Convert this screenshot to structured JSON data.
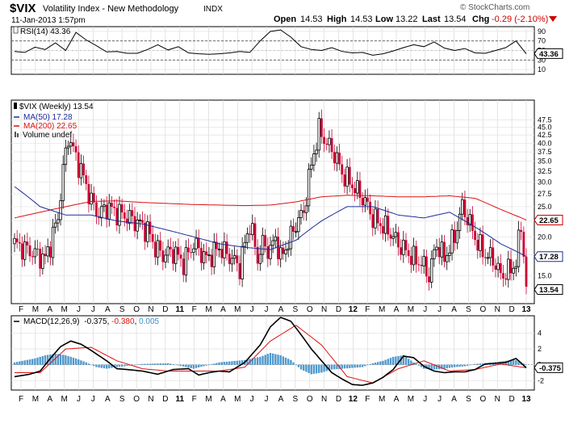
{
  "header": {
    "symbol": "$VIX",
    "name": "Volatility Index - New Methodology",
    "exchange": "INDX",
    "date": "11-Jan-2013 1:57pm",
    "watermark": "© StockCharts.com",
    "open_label": "Open",
    "open": "14.53",
    "high_label": "High",
    "high": "14.53",
    "low_label": "Low",
    "low": "13.22",
    "last_label": "Last",
    "last": "13.54",
    "chg_label": "Chg",
    "chg": "-0.29 (-2.10%)",
    "chg_icon": "down-triangle-icon"
  },
  "colors": {
    "up_candle": "#000000",
    "down_candle": "#cc0033",
    "ma50": "#1f2b99",
    "ma200": "#dd1111",
    "histogram": "#3d8fc9",
    "macd": "#000000",
    "signal": "#dd1111",
    "badge_ma50": "#1f2b99",
    "badge_ma200": "#cc0000",
    "badge_last": "#000000"
  },
  "chart_data": [
    {
      "type": "line",
      "name": "rsi",
      "legend": "RSI(14) 43.36",
      "ylim": [
        0,
        100
      ],
      "ticks": [
        10,
        30,
        50,
        70,
        90
      ],
      "levels": [
        70,
        30
      ],
      "last_badge": "43.36",
      "x": [
        0,
        4,
        8,
        12,
        16,
        20,
        24,
        28,
        32,
        36,
        40,
        44,
        48,
        52,
        56,
        60,
        64,
        68,
        72,
        76,
        80,
        84,
        88,
        92,
        96,
        100,
        104,
        108,
        112,
        116,
        120,
        124,
        128,
        132,
        136,
        140,
        144,
        148,
        152,
        156,
        160,
        164,
        168,
        172,
        176,
        180,
        184,
        188,
        192,
        196,
        200
      ],
      "values": [
        48,
        46,
        57,
        52,
        66,
        50,
        88,
        72,
        60,
        47,
        48,
        44,
        44,
        52,
        62,
        51,
        58,
        45,
        43,
        42,
        43,
        45,
        48,
        46,
        70,
        90,
        93,
        78,
        58,
        52,
        50,
        56,
        48,
        45,
        46,
        40,
        43,
        49,
        56,
        62,
        58,
        68,
        55,
        50,
        54,
        45,
        44,
        50,
        56,
        70,
        43
      ]
    },
    {
      "type": "candlestick",
      "name": "price",
      "legend_price": "$VIX (Weekly) 13.54",
      "legend_ma50": "MA(50) 17.28",
      "legend_ma200": "MA(200) 22.65",
      "legend_volume": "Volume undef",
      "y_scale": "log",
      "ylim": [
        12.2,
        55
      ],
      "ticks": [
        15.0,
        17.5,
        20.0,
        22.5,
        25.0,
        27.5,
        30.0,
        32.5,
        35.0,
        37.5,
        40.0,
        42.5,
        45.0,
        47.5
      ],
      "tick_labels": [
        "15.0",
        "17.5",
        "20.0",
        "22.5",
        "25.0",
        "27.5",
        "30.0",
        "32.5",
        "35.0",
        "37.5",
        "40.0",
        "42.5",
        "45.0",
        "47.5"
      ],
      "badges": {
        "ma200": "22.65",
        "ma50": "17.28",
        "last": "13.54"
      },
      "x_month_labels": [
        "F",
        "M",
        "A",
        "M",
        "J",
        "J",
        "A",
        "S",
        "O",
        "N",
        "D",
        "11",
        "F",
        "M",
        "A",
        "M",
        "J",
        "J",
        "A",
        "S",
        "O",
        "N",
        "D",
        "12",
        "F",
        "M",
        "A",
        "M",
        "J",
        "J",
        "A",
        "S",
        "O",
        "N",
        "D",
        "13"
      ],
      "close_anchors": {
        "x": [
          0,
          6,
          9,
          12,
          14,
          17,
          21,
          24,
          27,
          30,
          33,
          36,
          40,
          45,
          49,
          52,
          55,
          58,
          62,
          66,
          70,
          75,
          80,
          85,
          88,
          92,
          95,
          97,
          100,
          102,
          104,
          106,
          108,
          110,
          113,
          116,
          119,
          122,
          125,
          128,
          131,
          134,
          137,
          140,
          143,
          146,
          150,
          153,
          156,
          159,
          162,
          165,
          168,
          172,
          175,
          178,
          181,
          184,
          187,
          190,
          193,
          196,
          198,
          200
        ],
        "values": [
          19,
          18,
          17.5,
          17,
          19,
          23,
          42,
          36,
          31,
          26,
          23.5,
          25,
          24,
          23,
          22,
          21,
          18.5,
          17.5,
          18,
          16.5,
          19,
          17,
          18.5,
          17,
          16,
          22,
          17,
          19,
          18,
          20,
          17,
          18.5,
          20,
          22,
          24,
          34,
          44,
          40,
          37,
          32,
          30,
          28,
          26,
          23,
          22,
          21,
          19,
          18,
          17,
          16.5,
          15,
          19,
          17,
          20,
          25,
          22,
          19,
          17.5,
          17,
          15,
          15.5,
          16.5,
          22,
          13.5
        ]
      },
      "ma50": {
        "x": [
          0,
          10,
          20,
          30,
          40,
          50,
          60,
          70,
          80,
          90,
          100,
          110,
          120,
          130,
          140,
          150,
          160,
          170,
          180,
          190,
          200
        ],
        "values": [
          29,
          25,
          23.5,
          23.5,
          22.5,
          22,
          21,
          20,
          19,
          18.5,
          18.2,
          19.5,
          22.5,
          25,
          25,
          23.5,
          23,
          24,
          21.5,
          19,
          17.3
        ]
      },
      "ma200": {
        "x": [
          0,
          10,
          20,
          30,
          40,
          50,
          60,
          70,
          80,
          90,
          100,
          110,
          120,
          130,
          140,
          150,
          160,
          170,
          180,
          190,
          200
        ],
        "values": [
          23,
          24,
          25,
          26,
          26.1,
          25.8,
          25.6,
          25.4,
          25.3,
          25.2,
          25.3,
          25.9,
          26.9,
          27.2,
          27.1,
          26.9,
          26.9,
          27.1,
          26.6,
          24.5,
          22.65
        ]
      }
    },
    {
      "type": "bar",
      "name": "macd",
      "legend_title": "MACD(12,26,9)",
      "legend_macd": "-0.375",
      "legend_signal": "-0.380",
      "legend_hist": "0.005",
      "ylim": [
        -3.2,
        6.2
      ],
      "ticks": [
        -2,
        0,
        2,
        4
      ],
      "tick_labels": [
        "-2",
        "0",
        "2",
        "4"
      ],
      "badges": {
        "macd": "-0.375",
        "hist": "0.005"
      },
      "macd": {
        "x": [
          0,
          6,
          10,
          14,
          18,
          22,
          26,
          30,
          36,
          40,
          44,
          50,
          56,
          62,
          68,
          72,
          76,
          80,
          84,
          90,
          96,
          100,
          104,
          108,
          112,
          116,
          120,
          124,
          128,
          132,
          136,
          140,
          144,
          148,
          152,
          156,
          160,
          164,
          168,
          172,
          176,
          180,
          184,
          188,
          192,
          196,
          200
        ],
        "values": [
          -1.5,
          -1.2,
          -0.8,
          0.8,
          2.3,
          3.0,
          2.6,
          1.8,
          0.5,
          -0.5,
          -0.6,
          -0.8,
          -1.2,
          -0.6,
          -0.5,
          -1.3,
          -1.0,
          -0.8,
          -0.9,
          0.3,
          2.5,
          4.8,
          6.0,
          5.5,
          3.8,
          2.0,
          0.5,
          -1.0,
          -1.8,
          -2.5,
          -2.6,
          -2.3,
          -1.6,
          -0.6,
          1.1,
          0.9,
          -0.2,
          -0.8,
          -1.0,
          -0.9,
          -0.9,
          -0.6,
          0.1,
          0.2,
          0.3,
          0.8,
          -0.375
        ]
      },
      "signal": {
        "x": [
          0,
          10,
          20,
          30,
          40,
          50,
          60,
          70,
          80,
          90,
          100,
          110,
          120,
          130,
          140,
          150,
          160,
          170,
          180,
          190,
          200
        ],
        "values": [
          -1.0,
          -1.0,
          2.0,
          2.2,
          0.5,
          -0.5,
          -0.8,
          -0.8,
          -0.8,
          -0.3,
          3.0,
          5.0,
          2.5,
          -1.5,
          -2.3,
          -0.5,
          0.5,
          -0.8,
          -0.6,
          0.1,
          -0.38
        ]
      },
      "histogram": {
        "x": [
          0,
          8,
          12,
          16,
          20,
          24,
          28,
          32,
          36,
          40,
          50,
          60,
          70,
          80,
          90,
          96,
          100,
          104,
          108,
          112,
          116,
          120,
          124,
          128,
          132,
          136,
          140,
          144,
          148,
          152,
          156,
          160,
          164,
          168,
          172,
          176,
          180,
          184,
          188,
          192,
          196,
          200
        ],
        "values": [
          0.3,
          0.8,
          1.2,
          1.4,
          1.2,
          0.8,
          0.3,
          -0.3,
          -0.5,
          -0.3,
          0.1,
          0.2,
          -0.5,
          0.3,
          0.6,
          1.0,
          1.5,
          1.2,
          0.6,
          -0.6,
          -1.2,
          -1.0,
          -0.6,
          -0.5,
          -0.4,
          -0.3,
          0.2,
          0.5,
          1.0,
          1.2,
          0.3,
          -0.5,
          -0.6,
          -0.5,
          -0.3,
          -0.2,
          0.1,
          0.2,
          0.3,
          0.5,
          0.6,
          0.005
        ]
      },
      "x_month_labels": [
        "F",
        "M",
        "A",
        "M",
        "J",
        "J",
        "A",
        "S",
        "O",
        "N",
        "D",
        "11",
        "F",
        "M",
        "A",
        "M",
        "J",
        "J",
        "A",
        "S",
        "O",
        "N",
        "D",
        "12",
        "F",
        "M",
        "A",
        "M",
        "J",
        "J",
        "A",
        "S",
        "O",
        "N",
        "D",
        "13"
      ]
    }
  ]
}
